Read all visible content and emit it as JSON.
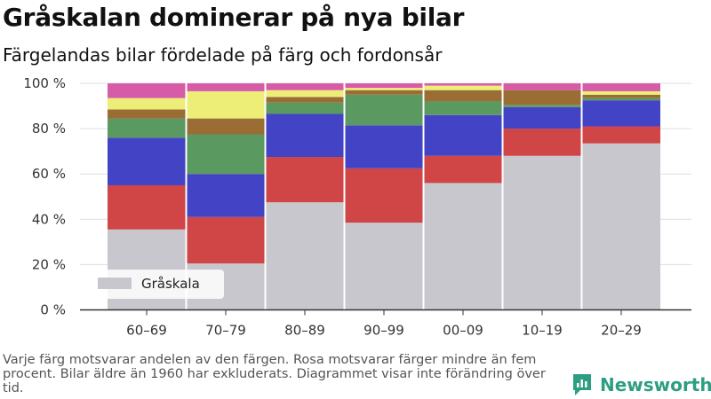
{
  "title": "Gråskalan dominerar på nya bilar",
  "subtitle": "Färgelandas bilar fördelade på färg och fordonsår",
  "footnote": "Varje färg motsvarar andelen av den färgen. Rosa motsvarar färger mindre än fem procent. Bilar äldre än 1960 har exkluderats. Diagrammet visar inte förändring över tid.",
  "logo": {
    "text": "Newsworthy",
    "icon": "newsworthy-chat-icon"
  },
  "chart_data": {
    "type": "bar",
    "stacked": true,
    "categories": [
      "60–69",
      "70–79",
      "80–89",
      "90–99",
      "00–09",
      "10–19",
      "20–29"
    ],
    "ylim": [
      0,
      100
    ],
    "y_ticks": [
      0,
      20,
      40,
      60,
      80,
      100
    ],
    "y_tick_labels": [
      "0 %",
      "20 %",
      "40 %",
      "60 %",
      "80 %",
      "100 %"
    ],
    "grid": true,
    "legend": {
      "position": "bottom-left",
      "entries": [
        "Gråskala"
      ]
    },
    "series": [
      {
        "name": "Gråskala",
        "color": "#c8c7ce",
        "values": [
          35.5,
          20.5,
          47.5,
          38.5,
          56,
          68,
          73.5
        ]
      },
      {
        "color": "#d04545",
        "values": [
          19.5,
          20.5,
          20,
          24,
          12,
          12,
          7.5
        ]
      },
      {
        "color": "#4343c6",
        "values": [
          21,
          19,
          19,
          19,
          18,
          9.5,
          11.5
        ]
      },
      {
        "color": "#5a9a60",
        "values": [
          8.5,
          17.5,
          5,
          13.5,
          6,
          1,
          1
        ]
      },
      {
        "color": "#9a6d35",
        "values": [
          4,
          7,
          2.5,
          2,
          5,
          6.5,
          1.5
        ]
      },
      {
        "color": "#ecee78",
        "values": [
          5,
          12,
          3,
          1,
          2,
          0,
          1.5
        ]
      },
      {
        "color": "#d65ca8",
        "values": [
          6.5,
          3.5,
          3,
          2,
          1,
          3,
          3.5
        ]
      }
    ]
  }
}
